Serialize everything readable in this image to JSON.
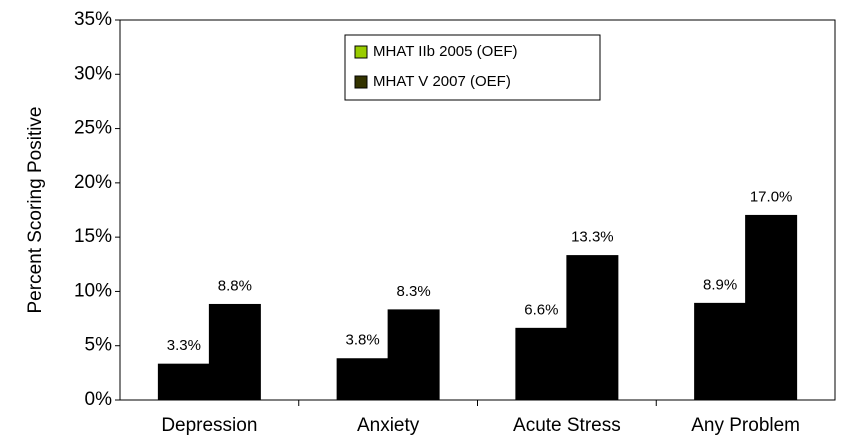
{
  "chart_data": {
    "type": "bar",
    "y_label": "Percent Scoring Positive",
    "categories": [
      "Depression",
      "Anxiety",
      "Acute Stress",
      "Any Problem"
    ],
    "series": [
      {
        "name": "MHAT IIb 2005 (OEF)",
        "color": "#99cc00",
        "values": [
          3.3,
          3.8,
          6.6,
          8.9
        ],
        "value_labels": [
          "3.3%",
          "3.8%",
          "6.6%",
          "8.9%"
        ]
      },
      {
        "name": "MHAT V 2007 (OEF)",
        "color": "#333300",
        "values": [
          8.8,
          8.3,
          13.3,
          17.0
        ],
        "value_labels": [
          "8.8%",
          "8.3%",
          "13.3%",
          "17.0%"
        ]
      }
    ],
    "ylim": [
      0,
      35
    ],
    "yticks": [
      {
        "value": 0,
        "label": "0%"
      },
      {
        "value": 5,
        "label": "5%"
      },
      {
        "value": 10,
        "label": "10%"
      },
      {
        "value": 15,
        "label": "15%"
      },
      {
        "value": 20,
        "label": "20%"
      },
      {
        "value": 25,
        "label": "25%"
      },
      {
        "value": 30,
        "label": "30%"
      },
      {
        "value": 35,
        "label": "35%"
      }
    ],
    "grid": false,
    "legend": "top"
  }
}
